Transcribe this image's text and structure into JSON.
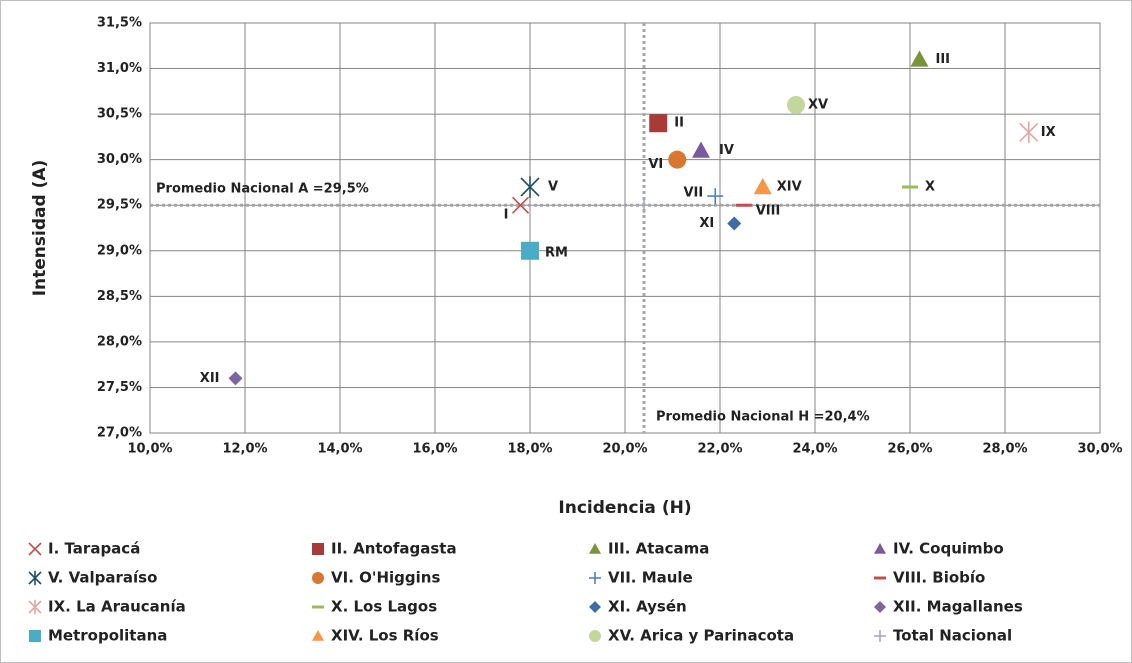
{
  "chart_data": {
    "type": "scatter",
    "x_label": "Incidencia (H)",
    "y_label": "Intensidad (A)",
    "xlim": [
      10,
      30
    ],
    "ylim": [
      27,
      31.5
    ],
    "xticks": [
      {
        "value": 10,
        "label": "10,0%"
      },
      {
        "value": 12,
        "label": "12,0%"
      },
      {
        "value": 14,
        "label": "14,0%"
      },
      {
        "value": 16,
        "label": "16,0%"
      },
      {
        "value": 18,
        "label": "18,0%"
      },
      {
        "value": 20,
        "label": "20,0%"
      },
      {
        "value": 22,
        "label": "22,0%"
      },
      {
        "value": 24,
        "label": "24,0%"
      },
      {
        "value": 26,
        "label": "26,0%"
      },
      {
        "value": 28,
        "label": "28,0%"
      },
      {
        "value": 30,
        "label": "30,0%"
      }
    ],
    "yticks": [
      {
        "value": 27,
        "label": "27,0%"
      },
      {
        "value": 27.5,
        "label": "27,5%"
      },
      {
        "value": 28,
        "label": "28,0%"
      },
      {
        "value": 28.5,
        "label": "28,5%"
      },
      {
        "value": 29,
        "label": "29,0%"
      },
      {
        "value": 29.5,
        "label": "29,5%"
      },
      {
        "value": 30,
        "label": "30,0%"
      },
      {
        "value": 30.5,
        "label": "30,5%"
      },
      {
        "value": 31,
        "label": "31,0%"
      },
      {
        "value": 31.5,
        "label": "31,5%"
      }
    ],
    "grid": true,
    "reference_lines": [
      {
        "axis": "y",
        "value": 29.5,
        "label": "Promedio Nacional A =29,5%"
      },
      {
        "axis": "x",
        "value": 20.4,
        "label": "Promedio Nacional H =20,4%"
      }
    ],
    "series": [
      {
        "name": "I. Tarapacá",
        "label": "I",
        "color": "#c0504d",
        "marker": "x",
        "x": [
          17.8
        ],
        "values": [
          29.5
        ]
      },
      {
        "name": "II. Antofagasta",
        "label": "II",
        "color": "#a83a38",
        "marker": "square",
        "x": [
          20.7
        ],
        "values": [
          30.4
        ]
      },
      {
        "name": "III. Atacama",
        "label": "III",
        "color": "#77933c",
        "marker": "triangle",
        "x": [
          26.2
        ],
        "values": [
          31.1
        ]
      },
      {
        "name": "IV. Coquimbo",
        "label": "IV",
        "color": "#7a5a9e",
        "marker": "triangle",
        "x": [
          21.6
        ],
        "values": [
          30.1
        ]
      },
      {
        "name": "V. Valparaíso",
        "label": "V",
        "color": "#1f4e6b",
        "marker": "asterisk",
        "x": [
          18.0
        ],
        "values": [
          29.7
        ]
      },
      {
        "name": "VI. O'Higgins",
        "label": "VI",
        "color": "#d9772f",
        "marker": "circle",
        "x": [
          21.1
        ],
        "values": [
          30.0
        ]
      },
      {
        "name": "VII. Maule",
        "label": "VII",
        "color": "#4f81bd",
        "marker": "plus",
        "x": [
          21.9
        ],
        "values": [
          29.6
        ]
      },
      {
        "name": "VIII. Biobío",
        "label": "VIII",
        "color": "#c0504d",
        "marker": "dash",
        "x": [
          22.5
        ],
        "values": [
          29.5
        ]
      },
      {
        "name": "IX. La Araucanía",
        "label": "IX",
        "color": "#e3a6a5",
        "marker": "asterisk",
        "x": [
          28.5
        ],
        "values": [
          30.3
        ]
      },
      {
        "name": "X. Los Lagos",
        "label": "X",
        "color": "#9bbb59",
        "marker": "dash",
        "x": [
          26.0
        ],
        "values": [
          29.7
        ]
      },
      {
        "name": "XI. Aysén",
        "label": "XI",
        "color": "#3e6da6",
        "marker": "diamond",
        "x": [
          22.3
        ],
        "values": [
          29.3
        ]
      },
      {
        "name": "XII. Magallanes",
        "label": "XII",
        "color": "#8064a2",
        "marker": "diamond",
        "x": [
          11.8
        ],
        "values": [
          27.6
        ]
      },
      {
        "name": "Metropolitana",
        "label": "RM",
        "color": "#4bacc6",
        "marker": "square",
        "x": [
          18.0
        ],
        "values": [
          29.0
        ]
      },
      {
        "name": "XIV. Los Ríos",
        "label": "XIV",
        "color": "#f79646",
        "marker": "triangle",
        "x": [
          22.9
        ],
        "values": [
          29.7
        ]
      },
      {
        "name": "XV. Arica y Parinacota",
        "label": "XV",
        "color": "#c3d69b",
        "marker": "circle",
        "x": [
          23.6
        ],
        "values": [
          30.6
        ]
      },
      {
        "name": "Total Nacional",
        "color": "#a6a6c6",
        "marker": "plus",
        "x": [
          20.4
        ],
        "values": [
          29.5
        ]
      }
    ]
  }
}
